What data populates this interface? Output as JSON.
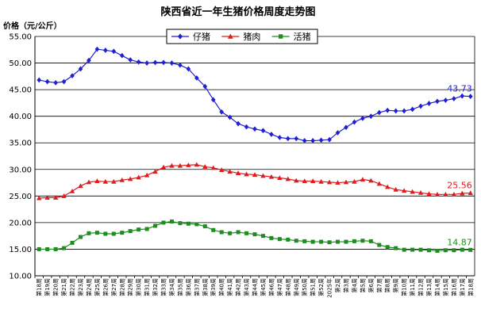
{
  "chart_data": {
    "type": "line",
    "title": "陕西省近一年生猪价格周度走势图",
    "ylabel": "价格（元/公斤）",
    "ylim": [
      10,
      55
    ],
    "yticks": [
      "10.00",
      "15.00",
      "20.00",
      "25.00",
      "30.00",
      "35.00",
      "40.00",
      "45.00",
      "50.00",
      "55.00"
    ],
    "grid": true,
    "legend_position": "top-center",
    "categories": [
      "第18周",
      "第19周",
      "第20周",
      "第21周",
      "第22周",
      "第23周",
      "第24周",
      "第25周",
      "第26周",
      "第27周",
      "第28周",
      "第29周",
      "第30周",
      "第31周",
      "第32周",
      "第33周",
      "第34周",
      "第35周",
      "第36周",
      "第37周",
      "第38周",
      "第39周",
      "第40周",
      "第41周",
      "第42周",
      "第43周",
      "第44周",
      "第45周",
      "第46周",
      "第47周",
      "第48周",
      "第49周",
      "第50周",
      "第51周",
      "第52周",
      "2025年",
      "第2周",
      "第3周",
      "第4周",
      "第5周",
      "第6周",
      "第7周",
      "第8周",
      "第9周",
      "第10周",
      "第11周",
      "第12周",
      "第13周",
      "第14周",
      "第15周",
      "第16周",
      "第17周",
      "第18周"
    ],
    "series": [
      {
        "name": "仔猪",
        "color": "#1f1fd6",
        "marker": "diamond",
        "end_label": "43.73",
        "values": [
          46.8,
          46.5,
          46.3,
          46.5,
          47.6,
          48.9,
          50.5,
          52.6,
          52.4,
          52.2,
          51.4,
          50.6,
          50.2,
          50.0,
          50.1,
          50.1,
          50.0,
          49.6,
          48.9,
          47.2,
          45.6,
          43.1,
          40.8,
          39.8,
          38.6,
          38.0,
          37.6,
          37.3,
          36.6,
          36.0,
          35.8,
          35.8,
          35.4,
          35.4,
          35.5,
          35.6,
          36.9,
          37.9,
          38.9,
          39.6,
          40.0,
          40.7,
          41.1,
          41.0,
          41.0,
          41.3,
          41.9,
          42.4,
          42.8,
          43.0,
          43.3,
          43.8,
          43.73
        ]
      },
      {
        "name": "猪肉",
        "color": "#e01b1b",
        "marker": "triangle",
        "end_label": "25.56",
        "values": [
          24.6,
          24.7,
          24.7,
          25.0,
          25.9,
          26.9,
          27.6,
          27.8,
          27.7,
          27.7,
          28.0,
          28.2,
          28.5,
          28.9,
          29.6,
          30.4,
          30.7,
          30.7,
          30.8,
          30.9,
          30.5,
          30.3,
          29.9,
          29.6,
          29.3,
          29.1,
          29.0,
          28.8,
          28.6,
          28.4,
          28.2,
          27.9,
          27.8,
          27.8,
          27.7,
          27.6,
          27.5,
          27.6,
          27.7,
          28.1,
          27.9,
          27.3,
          26.7,
          26.2,
          26.0,
          25.8,
          25.6,
          25.4,
          25.3,
          25.3,
          25.3,
          25.5,
          25.56
        ]
      },
      {
        "name": "活猪",
        "color": "#1e8c1e",
        "marker": "square",
        "end_label": "14.87",
        "values": [
          15.0,
          15.0,
          15.0,
          15.2,
          16.2,
          17.3,
          18.0,
          18.1,
          17.9,
          17.9,
          18.1,
          18.4,
          18.7,
          18.8,
          19.4,
          20.0,
          20.2,
          19.9,
          19.8,
          19.7,
          19.3,
          18.6,
          18.2,
          18.0,
          18.2,
          18.0,
          17.8,
          17.5,
          17.1,
          16.9,
          16.8,
          16.6,
          16.5,
          16.4,
          16.4,
          16.3,
          16.4,
          16.4,
          16.5,
          16.6,
          16.5,
          15.8,
          15.4,
          15.2,
          14.9,
          14.9,
          14.9,
          14.8,
          14.7,
          14.8,
          14.8,
          14.9,
          14.87
        ]
      }
    ]
  }
}
